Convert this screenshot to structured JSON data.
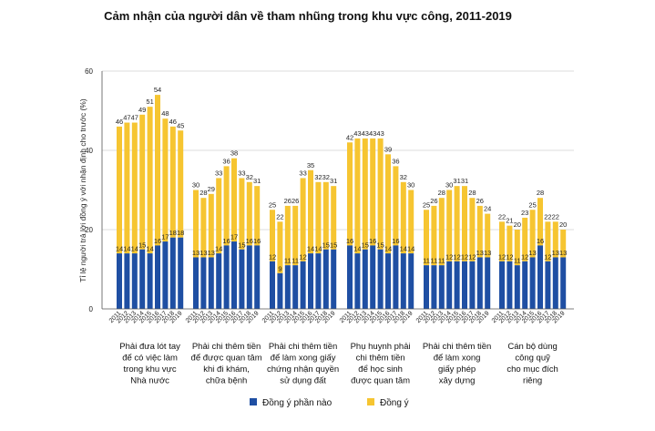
{
  "chart_data": {
    "type": "bar",
    "title": "Cảm nhận của người dân về tham nhũng trong khu vực công, 2011-2019",
    "ylabel": "Tỉ lệ người trả lời đồng ý với nhận định cho trước (%)",
    "xlabel": "",
    "ylim": [
      0,
      60
    ],
    "yticks": [
      0,
      20,
      40,
      60
    ],
    "grid": true,
    "legend_position": "bottom",
    "years": [
      "2011",
      "2012",
      "2013",
      "2014",
      "2015",
      "2016",
      "2017",
      "2018",
      "2019"
    ],
    "colors": {
      "somewhat": "#1f4fa3",
      "agree": "#f6c531",
      "grid": "#bbbbbb",
      "axis": "#555555"
    },
    "legend": [
      {
        "key": "somewhat",
        "label": "Đồng ý phần nào"
      },
      {
        "key": "agree",
        "label": "Đồng ý"
      }
    ],
    "groups": [
      {
        "label_lines": [
          "Phải đưa lót tay",
          "để có việc làm",
          "trong khu vực",
          "Nhà nước"
        ],
        "somewhat": [
          14,
          14,
          14,
          15,
          14,
          16,
          17,
          18,
          18
        ],
        "total": [
          46,
          47,
          47,
          49,
          51,
          54,
          48,
          46,
          45
        ]
      },
      {
        "label_lines": [
          "Phải chi thêm tiền",
          "để được quan tâm",
          "khi đi khám,",
          "chữa bệnh"
        ],
        "somewhat": [
          13,
          13,
          13,
          14,
          16,
          17,
          15,
          16,
          16
        ],
        "total": [
          30,
          28,
          29,
          33,
          36,
          38,
          33,
          32,
          31
        ]
      },
      {
        "label_lines": [
          "Phải chi thêm tiền",
          "để làm xong giấy",
          "chứng nhận quyền",
          "sử dụng đất"
        ],
        "somewhat": [
          12,
          9,
          11,
          11,
          12,
          14,
          14,
          15,
          15
        ],
        "total": [
          25,
          22,
          26,
          26,
          33,
          35,
          32,
          32,
          31
        ]
      },
      {
        "label_lines": [
          "Phụ huynh phải",
          "chi thêm tiền",
          "để học sinh",
          "được quan tâm"
        ],
        "somewhat": [
          16,
          14,
          15,
          16,
          15,
          14,
          16,
          14,
          14
        ],
        "total": [
          42,
          43,
          43,
          43,
          43,
          39,
          36,
          32,
          30
        ]
      },
      {
        "label_lines": [
          "Phải chi thêm tiền",
          "để làm xong",
          "giấy phép",
          "xây dựng"
        ],
        "somewhat": [
          11,
          11,
          11,
          12,
          12,
          12,
          12,
          13,
          13
        ],
        "total": [
          25,
          26,
          28,
          30,
          31,
          31,
          28,
          26,
          24
        ]
      },
      {
        "label_lines": [
          "Cán bộ dùng",
          "công quỹ",
          "cho mục đích",
          "riêng"
        ],
        "somewhat": [
          12,
          12,
          11,
          12,
          13,
          16,
          12,
          13,
          13
        ],
        "total": [
          22,
          21,
          20,
          23,
          25,
          28,
          22,
          22,
          20
        ]
      }
    ]
  }
}
